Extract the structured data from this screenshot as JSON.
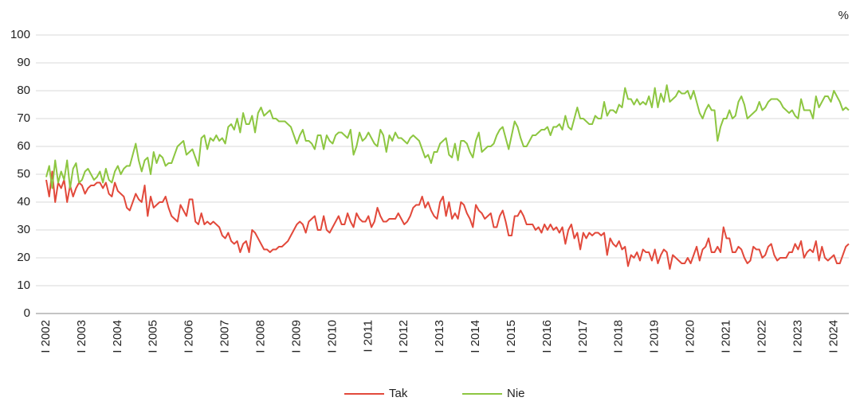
{
  "chart_data": {
    "type": "line",
    "unit_label": "%",
    "categories": [
      "I 2002",
      null,
      null,
      null,
      null,
      null,
      null,
      null,
      null,
      null,
      null,
      null,
      "I 2003",
      null,
      null,
      null,
      null,
      null,
      null,
      null,
      null,
      null,
      null,
      null,
      "I 2004",
      null,
      null,
      null,
      null,
      null,
      null,
      null,
      null,
      null,
      null,
      null,
      "I 2005",
      null,
      null,
      null,
      null,
      null,
      null,
      null,
      null,
      null,
      null,
      null,
      "I 2006",
      null,
      null,
      null,
      null,
      null,
      null,
      null,
      null,
      null,
      null,
      null,
      "I 2007",
      null,
      null,
      null,
      null,
      null,
      null,
      null,
      null,
      null,
      null,
      null,
      "I 2008",
      null,
      null,
      null,
      null,
      null,
      null,
      null,
      null,
      null,
      null,
      null,
      "I 2009",
      null,
      null,
      null,
      null,
      null,
      null,
      null,
      null,
      null,
      null,
      null,
      "I 2010",
      null,
      null,
      null,
      null,
      null,
      null,
      null,
      null,
      null,
      null,
      null,
      "I 2011",
      null,
      null,
      null,
      null,
      null,
      null,
      null,
      null,
      null,
      null,
      null,
      "I 2012",
      null,
      null,
      null,
      null,
      null,
      null,
      null,
      null,
      null,
      null,
      null,
      "I 2013",
      null,
      null,
      null,
      null,
      null,
      null,
      null,
      null,
      null,
      null,
      null,
      "I 2014",
      null,
      null,
      null,
      null,
      null,
      null,
      null,
      null,
      null,
      null,
      null,
      "I 2015",
      null,
      null,
      null,
      null,
      null,
      null,
      null,
      null,
      null,
      null,
      null,
      "I 2016",
      null,
      null,
      null,
      null,
      null,
      null,
      null,
      null,
      null,
      null,
      null,
      "I 2017",
      null,
      null,
      null,
      null,
      null,
      null,
      null,
      null,
      null,
      null,
      null,
      "I 2018",
      null,
      null,
      null,
      null,
      null,
      null,
      null,
      null,
      null,
      null,
      null,
      "I 2019",
      null,
      null,
      null,
      null,
      null,
      null,
      null,
      null,
      null,
      null,
      null,
      "I 2020",
      null,
      null,
      null,
      null,
      null,
      null,
      null,
      null,
      null,
      null,
      null,
      "I 2021",
      null,
      null,
      null,
      null,
      null,
      null,
      null,
      null,
      null,
      null,
      null,
      "I 2022",
      null,
      null,
      null,
      null,
      null,
      null,
      null,
      null,
      null,
      null,
      null,
      "I 2023",
      null,
      null,
      null,
      null,
      null,
      null,
      null,
      null,
      null,
      null,
      null,
      "I 2024",
      null,
      null,
      null,
      null,
      null
    ],
    "series": [
      {
        "name": "Tak",
        "color": "#e2493b",
        "values": [
          48,
          42,
          51,
          40,
          47,
          45,
          48,
          40,
          46,
          42,
          45,
          47,
          46,
          43,
          45,
          46,
          46,
          47,
          47,
          45,
          47,
          43,
          42,
          47,
          44,
          43,
          42,
          38,
          37,
          40,
          43,
          41,
          40,
          46,
          35,
          42,
          38,
          39,
          40,
          40,
          42,
          38,
          35,
          34,
          33,
          39,
          37,
          35,
          41,
          41,
          33,
          32,
          36,
          32,
          33,
          32,
          33,
          32,
          31,
          28,
          27,
          29,
          26,
          25,
          26,
          22,
          25,
          26,
          22,
          30,
          29,
          27,
          25,
          23,
          23,
          22,
          23,
          23,
          24,
          24,
          25,
          26,
          28,
          30,
          32,
          33,
          32,
          29,
          33,
          34,
          35,
          30,
          30,
          35,
          30,
          29,
          31,
          33,
          35,
          32,
          32,
          36,
          33,
          31,
          36,
          34,
          33,
          33,
          35,
          31,
          33,
          38,
          35,
          33,
          33,
          34,
          34,
          34,
          36,
          34,
          32,
          33,
          35,
          38,
          39,
          39,
          42,
          38,
          40,
          37,
          35,
          34,
          40,
          42,
          35,
          40,
          34,
          36,
          34,
          40,
          39,
          36,
          34,
          31,
          39,
          37,
          36,
          34,
          35,
          36,
          31,
          31,
          35,
          37,
          33,
          28,
          28,
          35,
          35,
          37,
          35,
          32,
          32,
          32,
          30,
          31,
          29,
          32,
          30,
          32,
          30,
          31,
          29,
          31,
          25,
          30,
          32,
          27,
          29,
          23,
          29,
          27,
          29,
          28,
          29,
          29,
          28,
          29,
          21,
          27,
          25,
          24,
          26,
          23,
          24,
          17,
          21,
          20,
          22,
          19,
          23,
          22,
          22,
          19,
          23,
          18,
          21,
          23,
          22,
          16,
          21,
          20,
          19,
          18,
          18,
          20,
          18,
          21,
          24,
          19,
          23,
          24,
          27,
          22,
          22,
          24,
          22,
          31,
          27,
          27,
          22,
          22,
          24,
          23,
          20,
          18,
          19,
          24,
          23,
          23,
          20,
          21,
          24,
          25,
          21,
          19,
          20,
          20,
          20,
          22,
          22,
          25,
          23,
          26,
          20,
          22,
          23,
          22,
          26,
          19,
          24,
          20,
          19,
          20,
          21,
          18,
          18,
          21,
          24,
          25
        ]
      },
      {
        "name": "Nie",
        "color": "#8dc641",
        "values": [
          49,
          53,
          45,
          55,
          47,
          51,
          48,
          55,
          45,
          52,
          54,
          47,
          48,
          51,
          52,
          50,
          48,
          49,
          51,
          47,
          52,
          48,
          47,
          51,
          53,
          50,
          52,
          53,
          53,
          57,
          61,
          55,
          51,
          55,
          56,
          50,
          58,
          54,
          57,
          56,
          53,
          54,
          54,
          57,
          60,
          61,
          62,
          57,
          58,
          59,
          56,
          53,
          63,
          64,
          59,
          63,
          62,
          64,
          62,
          63,
          61,
          67,
          68,
          66,
          70,
          65,
          72,
          68,
          68,
          71,
          65,
          72,
          74,
          71,
          72,
          73,
          70,
          70,
          69,
          69,
          69,
          68,
          67,
          64,
          61,
          64,
          66,
          62,
          62,
          61,
          59,
          64,
          64,
          59,
          64,
          62,
          61,
          64,
          65,
          65,
          64,
          63,
          66,
          57,
          60,
          65,
          62,
          63,
          65,
          63,
          61,
          60,
          66,
          64,
          58,
          64,
          62,
          65,
          63,
          63,
          62,
          61,
          63,
          64,
          63,
          62,
          59,
          56,
          57,
          54,
          58,
          58,
          61,
          62,
          63,
          57,
          56,
          61,
          55,
          62,
          62,
          61,
          58,
          56,
          62,
          65,
          58,
          59,
          60,
          60,
          61,
          64,
          66,
          67,
          63,
          59,
          64,
          69,
          67,
          63,
          60,
          60,
          62,
          64,
          64,
          65,
          66,
          66,
          67,
          64,
          67,
          67,
          68,
          66,
          71,
          67,
          66,
          70,
          74,
          70,
          70,
          69,
          68,
          68,
          71,
          70,
          70,
          76,
          71,
          73,
          73,
          72,
          75,
          74,
          81,
          77,
          77,
          75,
          77,
          75,
          76,
          75,
          78,
          74,
          81,
          74,
          79,
          76,
          82,
          76,
          77,
          78,
          80,
          79,
          79,
          80,
          77,
          80,
          76,
          72,
          70,
          73,
          75,
          73,
          73,
          62,
          67,
          70,
          70,
          73,
          70,
          71,
          76,
          78,
          75,
          70,
          71,
          72,
          73,
          76,
          73,
          74,
          76,
          77,
          77,
          77,
          76,
          74,
          73,
          72,
          73,
          71,
          70,
          77,
          73,
          73,
          73,
          70,
          78,
          74,
          76,
          78,
          78,
          76,
          80,
          78,
          76,
          73,
          74,
          73
        ]
      }
    ],
    "ylim": [
      0,
      100
    ],
    "yticks": [
      0,
      10,
      20,
      30,
      40,
      50,
      60,
      70,
      80,
      90,
      100
    ],
    "grid": true,
    "legend": "bottom"
  }
}
